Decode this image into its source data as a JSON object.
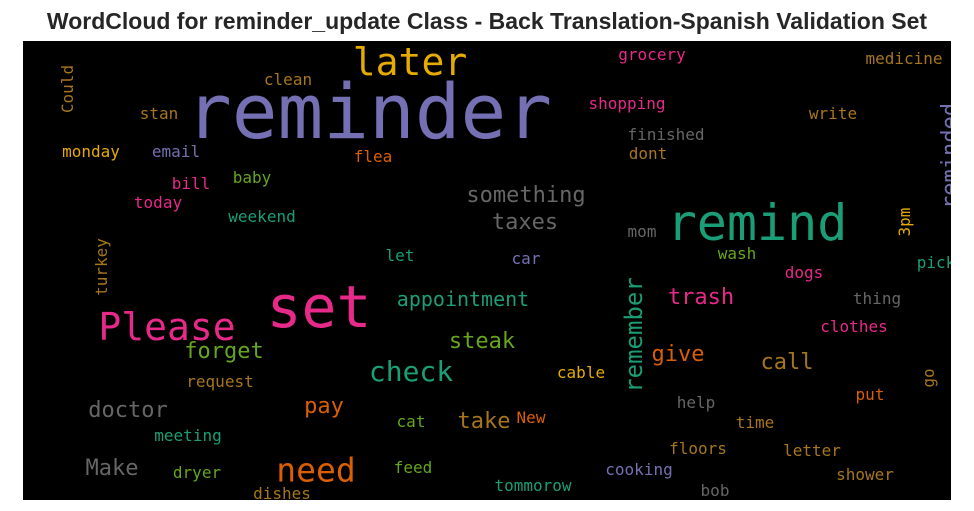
{
  "chart_data": {
    "type": "wordcloud",
    "title": "WordCloud for reminder_update Class - Back Translation-Spanish Validation Set",
    "words": [
      {
        "text": "reminder",
        "color": "#7570b3"
      },
      {
        "text": "set",
        "color": "#e7298a"
      },
      {
        "text": "remind",
        "color": "#1b9e77"
      },
      {
        "text": "Please",
        "color": "#e7298a"
      },
      {
        "text": "later",
        "color": "#e6ab02"
      },
      {
        "text": "check",
        "color": "#1b9e77"
      },
      {
        "text": "need",
        "color": "#d95f02"
      },
      {
        "text": "remember",
        "color": "#1b9e77"
      },
      {
        "text": "reminded",
        "color": "#7570b3"
      },
      {
        "text": "something",
        "color": "#666666"
      },
      {
        "text": "taxes",
        "color": "#666666"
      },
      {
        "text": "appointment",
        "color": "#1b9e77"
      },
      {
        "text": "trash",
        "color": "#e7298a"
      },
      {
        "text": "forget",
        "color": "#66a61e"
      },
      {
        "text": "steak",
        "color": "#66a61e"
      },
      {
        "text": "give",
        "color": "#d95f02"
      },
      {
        "text": "call",
        "color": "#a6761d"
      },
      {
        "text": "doctor",
        "color": "#666666"
      },
      {
        "text": "pay",
        "color": "#d95f02"
      },
      {
        "text": "take",
        "color": "#a6761d"
      },
      {
        "text": "Make",
        "color": "#666666"
      },
      {
        "text": "grocery",
        "color": "#e7298a"
      },
      {
        "text": "medicine",
        "color": "#a6761d"
      },
      {
        "text": "clean",
        "color": "#a6761d"
      },
      {
        "text": "Could",
        "color": "#a6761d"
      },
      {
        "text": "shopping",
        "color": "#e7298a"
      },
      {
        "text": "stan",
        "color": "#a6761d"
      },
      {
        "text": "write",
        "color": "#a6761d"
      },
      {
        "text": "finished",
        "color": "#666666"
      },
      {
        "text": "monday",
        "color": "#e6ab02"
      },
      {
        "text": "email",
        "color": "#7570b3"
      },
      {
        "text": "flea",
        "color": "#d95f02"
      },
      {
        "text": "dont",
        "color": "#a6761d"
      },
      {
        "text": "bill",
        "color": "#e7298a"
      },
      {
        "text": "baby",
        "color": "#66a61e"
      },
      {
        "text": "today",
        "color": "#e7298a"
      },
      {
        "text": "weekend",
        "color": "#1b9e77"
      },
      {
        "text": "mom",
        "color": "#666666"
      },
      {
        "text": "3pm",
        "color": "#e6ab02"
      },
      {
        "text": "turkey",
        "color": "#a6761d"
      },
      {
        "text": "let",
        "color": "#1b9e77"
      },
      {
        "text": "car",
        "color": "#7570b3"
      },
      {
        "text": "wash",
        "color": "#66a61e"
      },
      {
        "text": "pick",
        "color": "#1b9e77"
      },
      {
        "text": "dogs",
        "color": "#e7298a"
      },
      {
        "text": "thing",
        "color": "#666666"
      },
      {
        "text": "clothes",
        "color": "#e7298a"
      },
      {
        "text": "request",
        "color": "#a6761d"
      },
      {
        "text": "cable",
        "color": "#e6ab02"
      },
      {
        "text": "go",
        "color": "#a6761d"
      },
      {
        "text": "put",
        "color": "#d95f02"
      },
      {
        "text": "help",
        "color": "#666666"
      },
      {
        "text": "meeting",
        "color": "#1b9e77"
      },
      {
        "text": "cat",
        "color": "#66a61e"
      },
      {
        "text": "New",
        "color": "#d95f02"
      },
      {
        "text": "time",
        "color": "#a6761d"
      },
      {
        "text": "floors",
        "color": "#a6761d"
      },
      {
        "text": "letter",
        "color": "#a6761d"
      },
      {
        "text": "dryer",
        "color": "#66a61e"
      },
      {
        "text": "feed",
        "color": "#66a61e"
      },
      {
        "text": "cooking",
        "color": "#7570b3"
      },
      {
        "text": "shower",
        "color": "#a6761d"
      },
      {
        "text": "tommorow",
        "color": "#1b9e77"
      },
      {
        "text": "dishes",
        "color": "#a6761d"
      },
      {
        "text": "bob",
        "color": "#666666"
      }
    ]
  }
}
